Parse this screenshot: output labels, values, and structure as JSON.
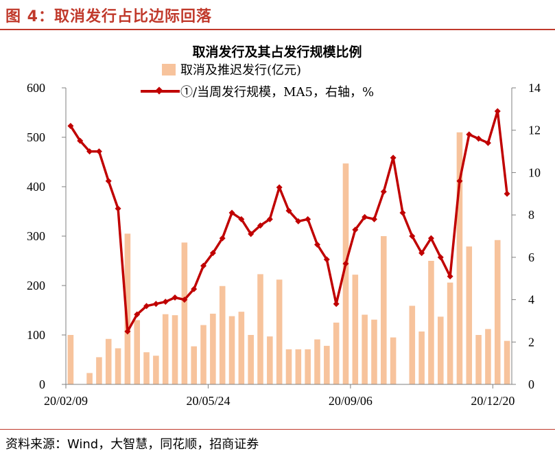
{
  "header": {
    "figure_label": "图 4：取消发行占比边际回落"
  },
  "footer": {
    "source": "资料来源：Wind，大智慧，同花顺，招商证券"
  },
  "colors": {
    "accent": "#c0392b",
    "bar": "#f7c39c",
    "line": "#c00000"
  },
  "chart_data": {
    "type": "bar+line",
    "title": "取消发行及其占发行规模比例",
    "legend": [
      "取消及推迟发行(亿元)",
      "①/当周发行规模，MA5，右轴，%"
    ],
    "legend_position": "top-center",
    "grid": false,
    "x_tick_labels": [
      "20/02/09",
      "20/05/24",
      "20/09/06",
      "20/12/20"
    ],
    "x_tick_indices": [
      0,
      15,
      30,
      45
    ],
    "left_axis": {
      "min": 0,
      "max": 600,
      "ticks": [
        0,
        100,
        200,
        300,
        400,
        500,
        600
      ]
    },
    "right_axis": {
      "min": 0,
      "max": 14,
      "ticks": [
        0,
        2,
        4,
        6,
        8,
        10,
        12,
        14
      ]
    },
    "series": [
      {
        "name": "取消及推迟发行(亿元)",
        "type": "bar",
        "axis": "left",
        "values": [
          100,
          0,
          23,
          55,
          92,
          73,
          305,
          130,
          65,
          58,
          142,
          140,
          287,
          77,
          120,
          143,
          199,
          138,
          147,
          100,
          223,
          97,
          212,
          71,
          71,
          71,
          91,
          78,
          125,
          447,
          222,
          141,
          131,
          300,
          95,
          0,
          159,
          107,
          250,
          137,
          206,
          510,
          279,
          100,
          112,
          292,
          88
        ]
      },
      {
        "name": "①/当周发行规模，MA5，右轴，%",
        "type": "line",
        "axis": "right",
        "values": [
          12.2,
          11.5,
          11.0,
          11.0,
          9.6,
          8.3,
          2.5,
          3.3,
          3.7,
          3.8,
          3.9,
          4.1,
          4.0,
          4.5,
          5.6,
          6.2,
          6.9,
          8.1,
          7.8,
          7.1,
          7.5,
          7.8,
          9.3,
          8.2,
          7.7,
          7.8,
          6.6,
          5.9,
          3.8,
          5.7,
          7.3,
          7.9,
          7.8,
          9.1,
          10.7,
          8.1,
          7.0,
          6.2,
          6.9,
          6.0,
          5.1,
          9.6,
          11.8,
          11.6,
          11.4,
          12.9,
          9.0
        ]
      }
    ]
  }
}
